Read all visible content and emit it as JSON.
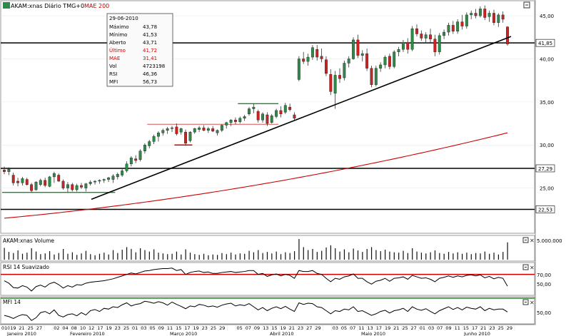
{
  "header": {
    "symbol_title": "AKAM:xnas Diário TMG+0",
    "ma_label": "MAE 200"
  },
  "tooltip": {
    "date": "29-06-2010",
    "rows": [
      {
        "label": "Máximo",
        "value": "43,78",
        "red": false
      },
      {
        "label": "Mínimo",
        "value": "41,53",
        "red": false
      },
      {
        "label": "Aberto",
        "value": "43,71",
        "red": false
      },
      {
        "label": "Último",
        "value": "41,72",
        "red": true
      },
      {
        "label": "MAE",
        "value": "31,41",
        "red": true
      },
      {
        "label": "Vol",
        "value": "4723198",
        "red": false
      },
      {
        "label": "RSI",
        "value": "46,36",
        "red": false
      },
      {
        "label": "MFI",
        "value": "56,73",
        "red": false
      }
    ]
  },
  "colors": {
    "up_candle": "#2f8a4a",
    "down_candle": "#cc2222",
    "ema": "#cc0000",
    "level_line": "#000000",
    "trendline": "#000000",
    "green_marker": "#1a8a2a",
    "red_marker": "#cc0000",
    "rsi_band": "#cc0000",
    "mfi_band": "#2a8a2a"
  },
  "panels": {
    "volume": {
      "title": "AKAM:xnas Volume",
      "tick_label": "5.000.000"
    },
    "rsi": {
      "title": "RSI 14 Suavizado",
      "tick_labels": [
        "70,00",
        "50,00"
      ]
    },
    "mfi": {
      "title": "MFI 14",
      "tick_labels": [
        "50,00"
      ]
    }
  },
  "x_axis": {
    "months": [
      "Janeiro 2010",
      "Fevereiro 2010",
      "Março 2010",
      "Abril 2010",
      "Maio 2010",
      "Junho 2010"
    ],
    "days": [
      "010",
      "19",
      "21",
      "25",
      "27",
      "",
      "02",
      "04",
      "08",
      "10",
      "12",
      "17",
      "19",
      "23",
      "25",
      "01",
      "03",
      "05",
      "09",
      "11",
      "15",
      "17",
      "19",
      "23",
      "25",
      "29",
      "",
      "05",
      "07",
      "09",
      "13",
      "15",
      "19",
      "21",
      "23",
      "27",
      "29",
      "",
      "03",
      "05",
      "07",
      "11",
      "13",
      "17",
      "19",
      "21",
      "25",
      "27",
      "01",
      "03",
      "07",
      "09",
      "11",
      "15",
      "17",
      "21",
      "23",
      "25",
      "29"
    ]
  },
  "chart_data": {
    "type": "candlestick",
    "y_axis": {
      "min": 20,
      "max": 46.5,
      "tick_labels": [
        "45,00",
        "40,00",
        "35,00",
        "30,00",
        "25,00"
      ],
      "tick_values": [
        45,
        40,
        35,
        30,
        25
      ]
    },
    "horizontal_levels": [
      {
        "value": 41.85,
        "label": "41,85"
      },
      {
        "value": 27.29,
        "label": "27,29"
      },
      {
        "value": 22.53,
        "label": "22,53"
      }
    ],
    "ema_200": {
      "start": 21.5,
      "end": 31.41
    },
    "candles": [
      {
        "o": 27.1,
        "h": 27.5,
        "l": 26.6,
        "c": 26.9
      },
      {
        "o": 26.9,
        "h": 27.4,
        "l": 26.5,
        "c": 27.2
      },
      {
        "o": 26.5,
        "h": 26.8,
        "l": 25.3,
        "c": 25.6
      },
      {
        "o": 25.8,
        "h": 26.2,
        "l": 25.2,
        "c": 25.6
      },
      {
        "o": 25.6,
        "h": 26.3,
        "l": 25.3,
        "c": 26.1
      },
      {
        "o": 26.0,
        "h": 26.2,
        "l": 25.3,
        "c": 25.4
      },
      {
        "o": 25.4,
        "h": 25.6,
        "l": 24.5,
        "c": 24.7
      },
      {
        "o": 24.8,
        "h": 25.8,
        "l": 24.7,
        "c": 25.7
      },
      {
        "o": 25.4,
        "h": 26.1,
        "l": 25.2,
        "c": 25.9
      },
      {
        "o": 25.9,
        "h": 26.2,
        "l": 25.1,
        "c": 25.3
      },
      {
        "o": 25.2,
        "h": 26.4,
        "l": 25.1,
        "c": 26.3
      },
      {
        "o": 26.3,
        "h": 26.9,
        "l": 25.6,
        "c": 26.7
      },
      {
        "o": 26.5,
        "h": 26.7,
        "l": 25.7,
        "c": 25.8
      },
      {
        "o": 25.8,
        "h": 26.0,
        "l": 24.8,
        "c": 25.0
      },
      {
        "o": 25.0,
        "h": 25.7,
        "l": 24.5,
        "c": 25.4
      },
      {
        "o": 25.4,
        "h": 25.6,
        "l": 24.6,
        "c": 24.8
      },
      {
        "o": 24.8,
        "h": 25.5,
        "l": 24.6,
        "c": 25.3
      },
      {
        "o": 25.3,
        "h": 25.6,
        "l": 24.9,
        "c": 25.1
      },
      {
        "o": 25.0,
        "h": 25.6,
        "l": 24.6,
        "c": 25.5
      },
      {
        "o": 25.5,
        "h": 25.9,
        "l": 25.3,
        "c": 25.7
      },
      {
        "o": 25.7,
        "h": 25.9,
        "l": 25.4,
        "c": 25.8
      },
      {
        "o": 25.8,
        "h": 26.0,
        "l": 25.5,
        "c": 25.9
      },
      {
        "o": 25.9,
        "h": 26.1,
        "l": 25.6,
        "c": 26.0
      },
      {
        "o": 26.0,
        "h": 26.3,
        "l": 25.7,
        "c": 26.2
      },
      {
        "o": 26.0,
        "h": 26.6,
        "l": 25.6,
        "c": 26.4
      },
      {
        "o": 26.3,
        "h": 26.8,
        "l": 26.0,
        "c": 26.6
      },
      {
        "o": 26.5,
        "h": 27.3,
        "l": 26.3,
        "c": 27.0
      },
      {
        "o": 27.0,
        "h": 28.1,
        "l": 26.8,
        "c": 27.8
      },
      {
        "o": 27.8,
        "h": 28.7,
        "l": 27.5,
        "c": 28.5
      },
      {
        "o": 28.4,
        "h": 28.8,
        "l": 27.9,
        "c": 28.2
      },
      {
        "o": 28.3,
        "h": 29.5,
        "l": 28.1,
        "c": 29.3
      },
      {
        "o": 29.3,
        "h": 30.2,
        "l": 29.0,
        "c": 30.0
      },
      {
        "o": 29.9,
        "h": 30.6,
        "l": 29.6,
        "c": 30.4
      },
      {
        "o": 30.4,
        "h": 31.2,
        "l": 30.1,
        "c": 31.0
      },
      {
        "o": 31.0,
        "h": 31.6,
        "l": 30.4,
        "c": 31.4
      },
      {
        "o": 31.4,
        "h": 31.9,
        "l": 31.1,
        "c": 31.7
      },
      {
        "o": 31.7,
        "h": 32.1,
        "l": 31.3,
        "c": 31.9
      },
      {
        "o": 31.9,
        "h": 32.2,
        "l": 31.5,
        "c": 32.0
      },
      {
        "o": 32.1,
        "h": 32.5,
        "l": 31.1,
        "c": 31.3
      },
      {
        "o": 31.5,
        "h": 32.0,
        "l": 31.2,
        "c": 31.9
      },
      {
        "o": 31.5,
        "h": 31.8,
        "l": 29.9,
        "c": 30.2
      },
      {
        "o": 30.5,
        "h": 31.6,
        "l": 30.3,
        "c": 31.5
      },
      {
        "o": 31.5,
        "h": 32.0,
        "l": 31.3,
        "c": 31.9
      },
      {
        "o": 31.8,
        "h": 32.2,
        "l": 31.5,
        "c": 32.0
      },
      {
        "o": 32.0,
        "h": 32.3,
        "l": 31.6,
        "c": 31.7
      },
      {
        "o": 31.7,
        "h": 32.1,
        "l": 31.4,
        "c": 31.9
      },
      {
        "o": 31.9,
        "h": 32.2,
        "l": 31.5,
        "c": 31.6
      },
      {
        "o": 31.4,
        "h": 31.8,
        "l": 31.1,
        "c": 31.7
      },
      {
        "o": 31.7,
        "h": 32.4,
        "l": 31.5,
        "c": 32.3
      },
      {
        "o": 32.3,
        "h": 32.7,
        "l": 31.9,
        "c": 32.6
      },
      {
        "o": 32.6,
        "h": 33.0,
        "l": 32.2,
        "c": 32.9
      },
      {
        "o": 32.9,
        "h": 33.2,
        "l": 32.4,
        "c": 32.7
      },
      {
        "o": 32.7,
        "h": 33.3,
        "l": 32.5,
        "c": 33.1
      },
      {
        "o": 33.1,
        "h": 33.5,
        "l": 32.8,
        "c": 33.3
      },
      {
        "o": 33.6,
        "h": 34.4,
        "l": 33.4,
        "c": 34.2
      },
      {
        "o": 34.2,
        "h": 34.8,
        "l": 33.7,
        "c": 34.4
      },
      {
        "o": 33.9,
        "h": 34.1,
        "l": 32.6,
        "c": 32.9
      },
      {
        "o": 32.9,
        "h": 33.8,
        "l": 32.6,
        "c": 33.6
      },
      {
        "o": 33.5,
        "h": 33.8,
        "l": 32.2,
        "c": 32.5
      },
      {
        "o": 32.6,
        "h": 33.6,
        "l": 32.5,
        "c": 33.4
      },
      {
        "o": 33.3,
        "h": 34.2,
        "l": 33.1,
        "c": 34.0
      },
      {
        "o": 34.0,
        "h": 34.5,
        "l": 33.2,
        "c": 33.6
      },
      {
        "o": 33.8,
        "h": 34.9,
        "l": 33.6,
        "c": 34.6
      },
      {
        "o": 34.4,
        "h": 34.8,
        "l": 33.9,
        "c": 34.1
      },
      {
        "o": 33.5,
        "h": 33.8,
        "l": 32.9,
        "c": 33.1
      },
      {
        "o": 37.6,
        "h": 40.3,
        "l": 37.4,
        "c": 40.0
      },
      {
        "o": 40.0,
        "h": 40.8,
        "l": 39.4,
        "c": 39.7
      },
      {
        "o": 39.7,
        "h": 40.6,
        "l": 39.2,
        "c": 40.2
      },
      {
        "o": 40.2,
        "h": 41.6,
        "l": 39.9,
        "c": 41.3
      },
      {
        "o": 41.1,
        "h": 41.6,
        "l": 39.8,
        "c": 40.2
      },
      {
        "o": 40.3,
        "h": 41.2,
        "l": 39.6,
        "c": 40.0
      },
      {
        "o": 39.9,
        "h": 40.3,
        "l": 38.0,
        "c": 38.3
      },
      {
        "o": 38.2,
        "h": 38.8,
        "l": 35.8,
        "c": 36.2
      },
      {
        "o": 36.0,
        "h": 38.6,
        "l": 34.2,
        "c": 38.1
      },
      {
        "o": 38.1,
        "h": 38.9,
        "l": 37.2,
        "c": 37.7
      },
      {
        "o": 37.8,
        "h": 39.8,
        "l": 37.5,
        "c": 39.5
      },
      {
        "o": 39.5,
        "h": 40.3,
        "l": 39.0,
        "c": 40.0
      },
      {
        "o": 40.0,
        "h": 42.5,
        "l": 39.9,
        "c": 42.2
      },
      {
        "o": 42.2,
        "h": 42.8,
        "l": 40.1,
        "c": 40.4
      },
      {
        "o": 40.4,
        "h": 41.0,
        "l": 39.7,
        "c": 40.6
      },
      {
        "o": 40.6,
        "h": 41.2,
        "l": 38.6,
        "c": 38.9
      },
      {
        "o": 38.9,
        "h": 39.2,
        "l": 36.7,
        "c": 37.0
      },
      {
        "o": 37.0,
        "h": 39.2,
        "l": 36.8,
        "c": 38.9
      },
      {
        "o": 38.9,
        "h": 39.6,
        "l": 38.5,
        "c": 39.3
      },
      {
        "o": 39.3,
        "h": 40.4,
        "l": 38.9,
        "c": 40.2
      },
      {
        "o": 40.3,
        "h": 40.6,
        "l": 38.8,
        "c": 39.1
      },
      {
        "o": 39.1,
        "h": 41.0,
        "l": 38.9,
        "c": 40.8
      },
      {
        "o": 40.8,
        "h": 41.4,
        "l": 40.3,
        "c": 41.1
      },
      {
        "o": 41.1,
        "h": 42.2,
        "l": 40.8,
        "c": 41.9
      },
      {
        "o": 41.9,
        "h": 42.4,
        "l": 40.6,
        "c": 41.1
      },
      {
        "o": 41.1,
        "h": 43.8,
        "l": 40.9,
        "c": 43.5
      },
      {
        "o": 43.5,
        "h": 44.0,
        "l": 42.6,
        "c": 42.9
      },
      {
        "o": 42.9,
        "h": 43.3,
        "l": 42.1,
        "c": 42.4
      },
      {
        "o": 42.4,
        "h": 43.1,
        "l": 41.8,
        "c": 42.8
      },
      {
        "o": 42.8,
        "h": 43.5,
        "l": 41.9,
        "c": 42.3
      },
      {
        "o": 42.3,
        "h": 42.8,
        "l": 40.3,
        "c": 40.8
      },
      {
        "o": 40.8,
        "h": 43.0,
        "l": 40.5,
        "c": 42.7
      },
      {
        "o": 42.7,
        "h": 43.4,
        "l": 42.3,
        "c": 43.1
      },
      {
        "o": 43.1,
        "h": 44.2,
        "l": 42.7,
        "c": 43.9
      },
      {
        "o": 43.9,
        "h": 44.4,
        "l": 42.9,
        "c": 43.2
      },
      {
        "o": 43.2,
        "h": 44.6,
        "l": 42.9,
        "c": 44.3
      },
      {
        "o": 44.3,
        "h": 45.1,
        "l": 43.4,
        "c": 43.8
      },
      {
        "o": 43.8,
        "h": 45.4,
        "l": 43.5,
        "c": 45.1
      },
      {
        "o": 45.1,
        "h": 45.6,
        "l": 44.6,
        "c": 45.3
      },
      {
        "o": 45.3,
        "h": 45.8,
        "l": 44.7,
        "c": 45.0
      },
      {
        "o": 45.0,
        "h": 46.1,
        "l": 44.8,
        "c": 45.8
      },
      {
        "o": 45.8,
        "h": 46.2,
        "l": 44.5,
        "c": 44.8
      },
      {
        "o": 44.9,
        "h": 45.6,
        "l": 44.3,
        "c": 45.3
      },
      {
        "o": 45.3,
        "h": 45.7,
        "l": 43.9,
        "c": 44.2
      },
      {
        "o": 44.2,
        "h": 45.3,
        "l": 43.7,
        "c": 45.1
      },
      {
        "o": 45.1,
        "h": 45.5,
        "l": 44.2,
        "c": 44.6
      },
      {
        "o": 43.71,
        "h": 43.78,
        "l": 41.53,
        "c": 41.72
      }
    ],
    "volume": [
      3.2,
      2.1,
      1.8,
      2.5,
      1.6,
      1.9,
      3.1,
      2.2,
      1.5,
      1.7,
      2.3,
      1.4,
      1.8,
      2.9,
      1.6,
      2.0,
      1.3,
      1.7,
      2.4,
      1.5,
      1.2,
      1.6,
      1.9,
      1.4,
      2.6,
      1.8,
      2.7,
      3.4,
      2.9,
      2.0,
      3.1,
      2.6,
      2.2,
      2.8,
      1.9,
      1.7,
      1.5,
      1.6,
      2.2,
      1.4,
      2.8,
      1.9,
      1.5,
      1.3,
      1.6,
      1.2,
      1.4,
      1.3,
      1.8,
      1.5,
      1.9,
      1.4,
      1.7,
      1.6,
      2.4,
      2.0,
      2.6,
      1.8,
      2.1,
      1.7,
      2.2,
      1.5,
      2.0,
      1.8,
      2.3,
      5.6,
      3.4,
      2.6,
      2.9,
      2.1,
      2.4,
      3.3,
      3.9,
      3.1,
      2.2,
      2.8,
      2.0,
      3.0,
      2.5,
      2.1,
      2.9,
      3.4,
      2.6,
      2.3,
      2.7,
      2.2,
      2.0,
      1.9,
      2.4,
      1.8,
      3.1,
      2.2,
      1.9,
      1.7,
      2.0,
      2.5,
      1.8,
      1.6,
      2.1,
      1.7,
      2.0,
      1.6,
      1.9,
      1.5,
      1.8,
      1.7,
      2.2,
      1.6,
      1.9,
      1.4,
      2.1,
      4.7
    ],
    "rsi": [
      57,
      52,
      43,
      42,
      47,
      44,
      36,
      45,
      48,
      44,
      51,
      54,
      49,
      42,
      47,
      44,
      49,
      48,
      52,
      54,
      55,
      56,
      57,
      59,
      61,
      64,
      67,
      70,
      73,
      71,
      74,
      77,
      78,
      80,
      81,
      82,
      82,
      83,
      78,
      80,
      70,
      74,
      76,
      77,
      74,
      75,
      72,
      72,
      74,
      75,
      76,
      74,
      75,
      76,
      78,
      78,
      70,
      72,
      66,
      69,
      71,
      67,
      70,
      68,
      62,
      78,
      76,
      76,
      78,
      72,
      70,
      62,
      55,
      62,
      60,
      65,
      67,
      71,
      62,
      62,
      55,
      50,
      56,
      58,
      62,
      56,
      62,
      63,
      65,
      60,
      68,
      65,
      62,
      63,
      60,
      55,
      62,
      64,
      67,
      64,
      67,
      65,
      68,
      69,
      67,
      69,
      63,
      66,
      61,
      64,
      62,
      46
    ],
    "mfi": [
      48,
      45,
      40,
      46,
      50,
      48,
      35,
      42,
      55,
      58,
      52,
      62,
      48,
      44,
      50,
      52,
      47,
      55,
      49,
      60,
      63,
      58,
      66,
      64,
      70,
      68,
      75,
      80,
      72,
      76,
      78,
      84,
      82,
      79,
      83,
      80,
      74,
      82,
      76,
      71,
      65,
      72,
      70,
      76,
      74,
      70,
      72,
      69,
      74,
      77,
      79,
      72,
      75,
      73,
      78,
      70,
      62,
      68,
      60,
      66,
      70,
      65,
      71,
      64,
      58,
      80,
      76,
      79,
      78,
      70,
      68,
      60,
      52,
      60,
      58,
      64,
      62,
      70,
      58,
      60,
      54,
      48,
      52,
      58,
      61,
      54,
      60,
      62,
      66,
      58,
      70,
      64,
      61,
      65,
      58,
      52,
      60,
      65,
      70,
      63,
      68,
      62,
      69,
      66,
      64,
      70,
      60,
      66,
      62,
      64,
      64,
      56.73
    ]
  }
}
